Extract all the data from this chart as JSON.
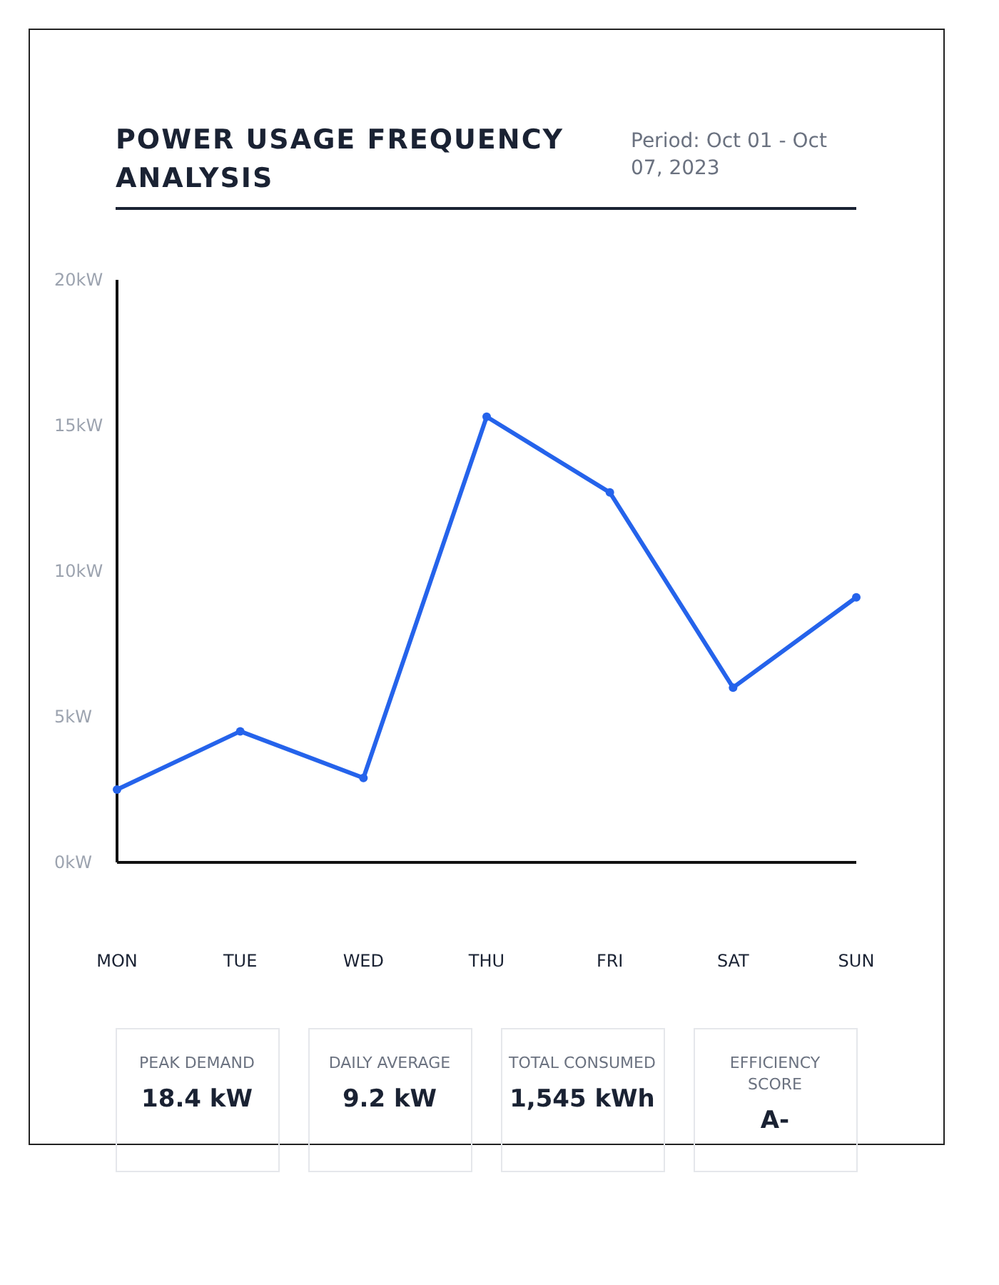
{
  "chart_data": {
    "type": "line",
    "title": "POWER USAGE FREQUENCY ANALYSIS",
    "subtitle": "Period: Oct 01 - Oct 07, 2023",
    "categories": [
      "MON",
      "TUE",
      "WED",
      "THU",
      "FRI",
      "SAT",
      "SUN"
    ],
    "series": [
      {
        "color": "#2563eb",
        "values": [
          2.5,
          4.5,
          2.9,
          15.3,
          12.7,
          6.0,
          9.1
        ]
      }
    ],
    "ylim": [
      0,
      20
    ],
    "yticks": [
      {
        "value": 0,
        "label": "0kW"
      },
      {
        "value": 5,
        "label": "5kW"
      },
      {
        "value": 10,
        "label": "10kW"
      },
      {
        "value": 15,
        "label": "15kW"
      },
      {
        "value": 20,
        "label": "20kW"
      }
    ],
    "marker": "circle",
    "line_style": "solid",
    "grid": false,
    "annotations": [
      "PEAK DEMAND",
      "18.4 kW",
      "DAILY AVERAGE",
      "9.2 kW",
      "TOTAL CONSUMED",
      "1,545 kWh",
      "EFFICIENCY SCORE",
      "A-"
    ]
  }
}
